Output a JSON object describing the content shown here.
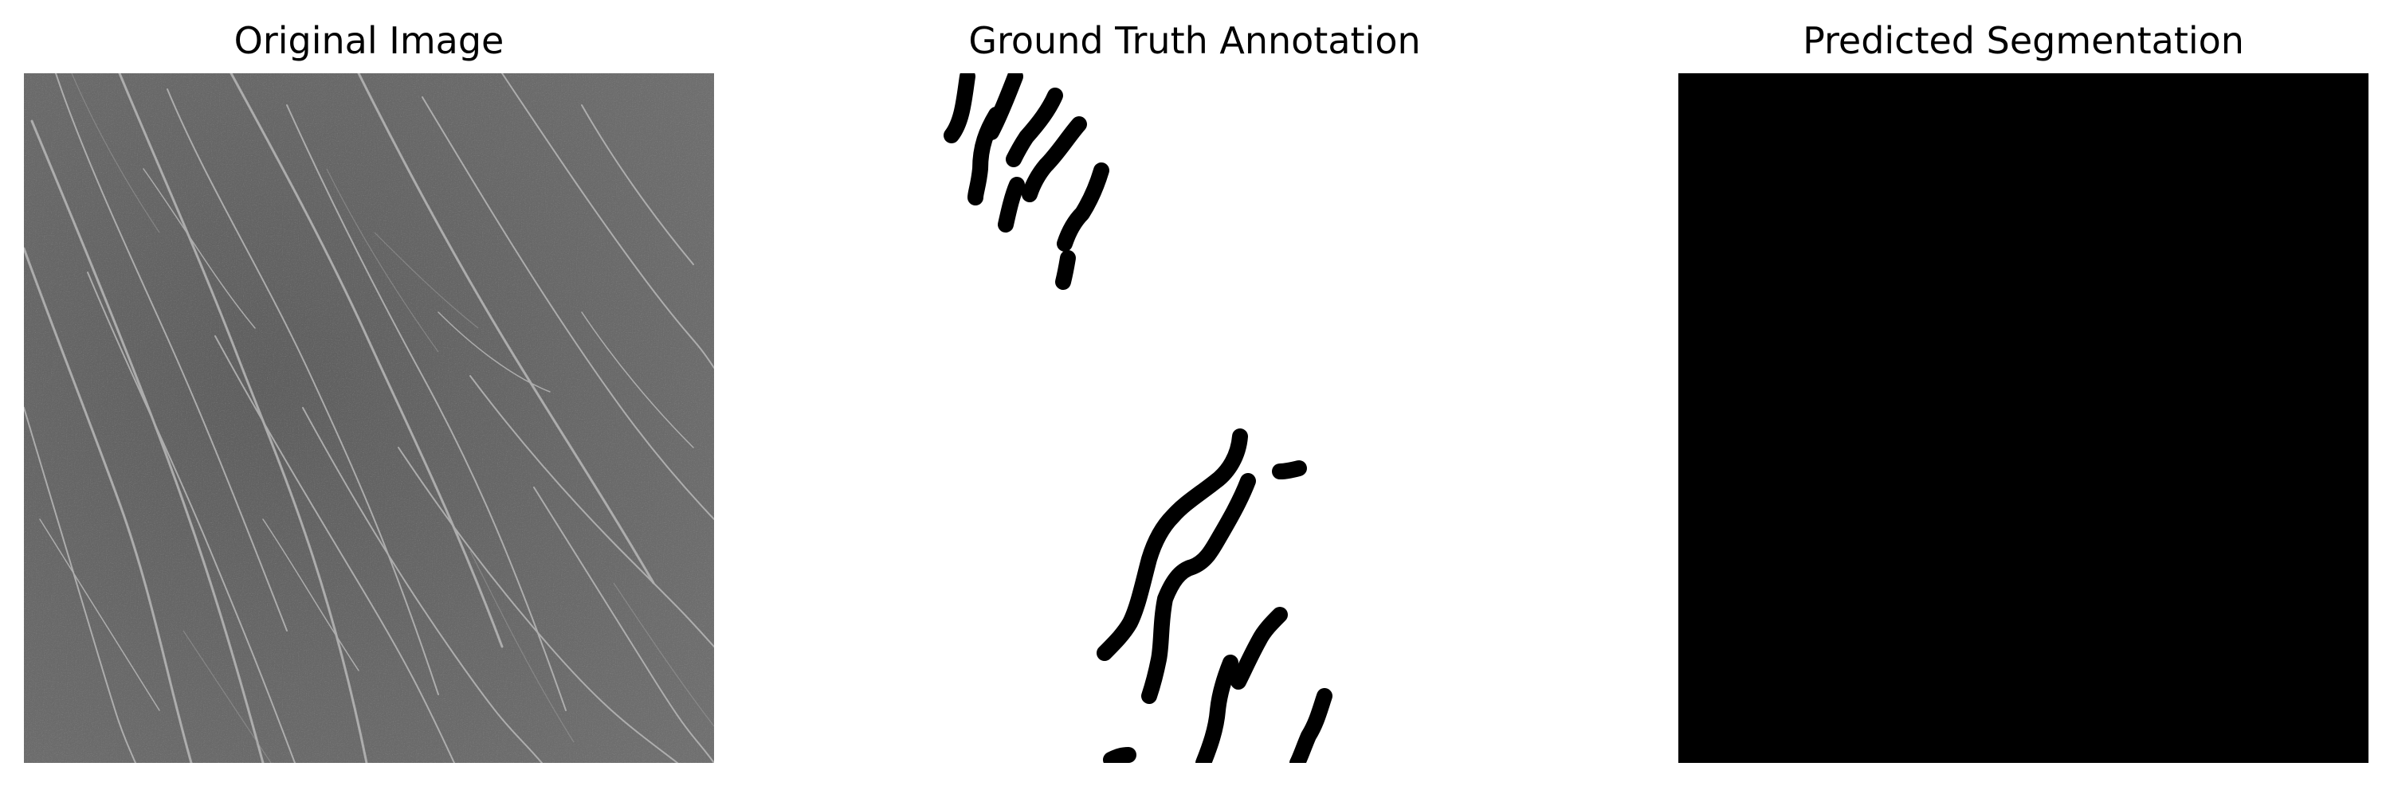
{
  "panels": {
    "original": {
      "title": "Original Image"
    },
    "ground_truth": {
      "title": "Ground Truth Annotation"
    },
    "prediction": {
      "title": "Predicted Segmentation"
    }
  },
  "colors": {
    "original_background": "#6a6a6a",
    "crack_highlight": "#bcbcbc",
    "mask_foreground": "#000000",
    "mask_background": "#ffffff",
    "prediction_fill": "#000000"
  }
}
